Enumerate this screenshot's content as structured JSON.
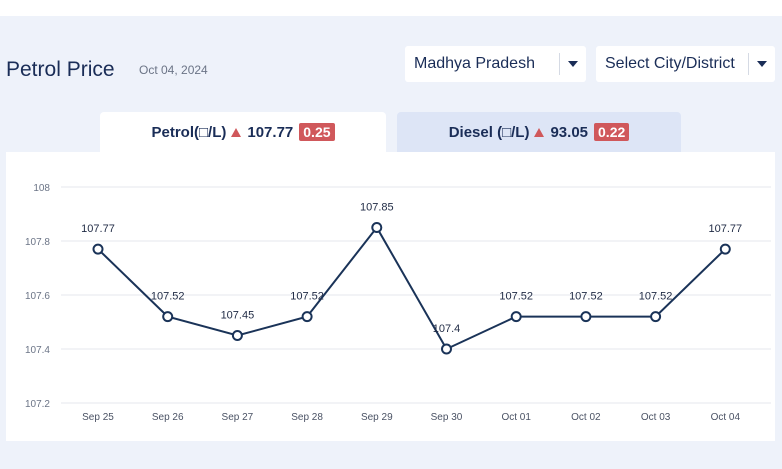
{
  "header": {
    "title": "Petrol Price",
    "date": "Oct 04, 2024"
  },
  "filters": {
    "state": {
      "value": "Madhya Pradesh"
    },
    "city": {
      "value": "Select City/District"
    }
  },
  "tabs": [
    {
      "label": "Petrol(□/L)",
      "price": "107.77",
      "change": "0.25",
      "active": true
    },
    {
      "label": "Diesel (□/L)",
      "price": "93.05",
      "change": "0.22",
      "active": false
    }
  ],
  "colors": {
    "line": "#1a3358",
    "up_badge": "#d0585b",
    "active_tab": "#ffffff",
    "inactive_tab": "#dde5f6"
  },
  "icons": {
    "dropdown": "chevron-down-icon",
    "change": "up-triangle-icon"
  },
  "chart_data": {
    "type": "line",
    "categories": [
      "Sep 25",
      "Sep 26",
      "Sep 27",
      "Sep 28",
      "Sep 29",
      "Sep 30",
      "Oct 01",
      "Oct 02",
      "Oct 03",
      "Oct 04"
    ],
    "series": [
      {
        "values": [
          107.77,
          107.52,
          107.45,
          107.52,
          107.85,
          107.4,
          107.52,
          107.52,
          107.52,
          107.77
        ]
      }
    ],
    "data_labels": [
      "107.77",
      "107.52",
      "107.45",
      "107.52",
      "107.85",
      "107.4",
      "107.52",
      "107.52",
      "107.52",
      "107.77"
    ],
    "yticks": [
      "107.2",
      "107.4",
      "107.6",
      "107.8",
      "108"
    ],
    "ylim": [
      107.2,
      108
    ],
    "grid": true,
    "markers": "hollow-circle"
  }
}
